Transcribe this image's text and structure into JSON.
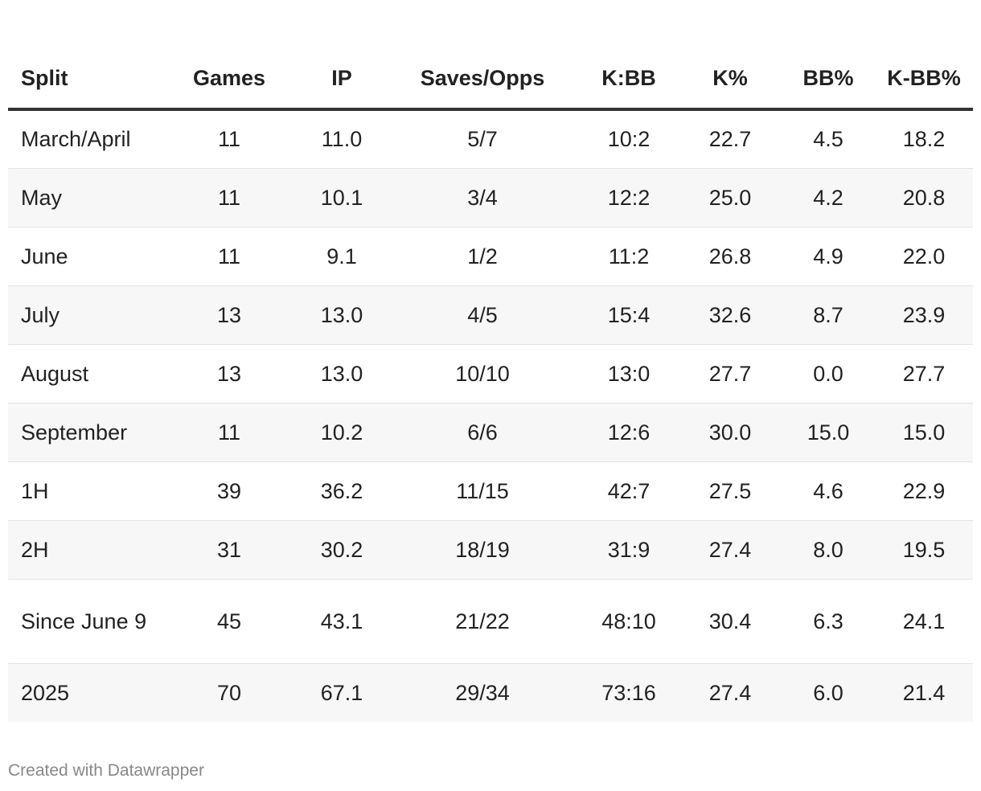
{
  "chart_data": {
    "type": "table",
    "columns": [
      "Split",
      "Games",
      "IP",
      "Saves/Opps",
      "K:BB",
      "K%",
      "BB%",
      "K-BB%"
    ],
    "rows": [
      [
        "March/April",
        "11",
        "11.0",
        "5/7",
        "10:2",
        "22.7",
        "4.5",
        "18.2"
      ],
      [
        "May",
        "11",
        "10.1",
        "3/4",
        "12:2",
        "25.0",
        "4.2",
        "20.8"
      ],
      [
        "June",
        "11",
        "9.1",
        "1/2",
        "11:2",
        "26.8",
        "4.9",
        "22.0"
      ],
      [
        "July",
        "13",
        "13.0",
        "4/5",
        "15:4",
        "32.6",
        "8.7",
        "23.9"
      ],
      [
        "August",
        "13",
        "13.0",
        "10/10",
        "13:0",
        "27.7",
        "0.0",
        "27.7"
      ],
      [
        "September",
        "11",
        "10.2",
        "6/6",
        "12:6",
        "30.0",
        "15.0",
        "15.0"
      ],
      [
        "1H",
        "39",
        "36.2",
        "11/15",
        "42:7",
        "27.5",
        "4.6",
        "22.9"
      ],
      [
        "2H",
        "31",
        "30.2",
        "18/19",
        "31:9",
        "27.4",
        "8.0",
        "19.5"
      ],
      [
        "Since June 9",
        "45",
        "43.1",
        "21/22",
        "48:10",
        "30.4",
        "6.3",
        "24.1"
      ],
      [
        "2025",
        "70",
        "67.1",
        "29/34",
        "73:16",
        "27.4",
        "6.0",
        "21.4"
      ]
    ]
  },
  "footer": {
    "credit": "Created with Datawrapper"
  }
}
